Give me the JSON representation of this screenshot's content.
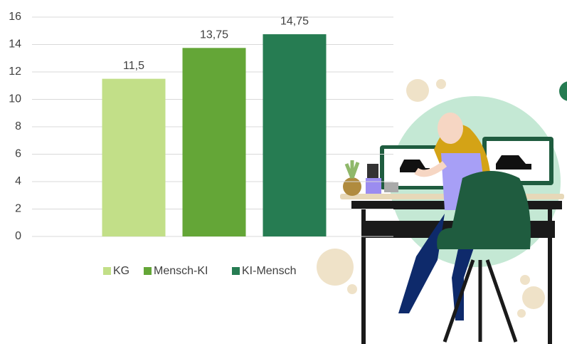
{
  "chart_data": {
    "type": "bar",
    "categories": [
      null
    ],
    "series": [
      {
        "name": "KG",
        "color": "#c2df88",
        "values": [
          11.5
        ],
        "value_labels": [
          "11,5"
        ]
      },
      {
        "name": "Mensch-KI",
        "color": "#64a637",
        "values": [
          13.75
        ],
        "value_labels": [
          "13,75"
        ]
      },
      {
        "name": "KI-Mensch",
        "color": "#267c52",
        "values": [
          14.75
        ],
        "value_labels": [
          "14,75"
        ]
      }
    ],
    "ylim": [
      0,
      16
    ],
    "yticks": [
      0,
      2,
      4,
      6,
      8,
      10,
      12,
      14,
      16
    ],
    "grid": true,
    "legend": "bottom"
  }
}
